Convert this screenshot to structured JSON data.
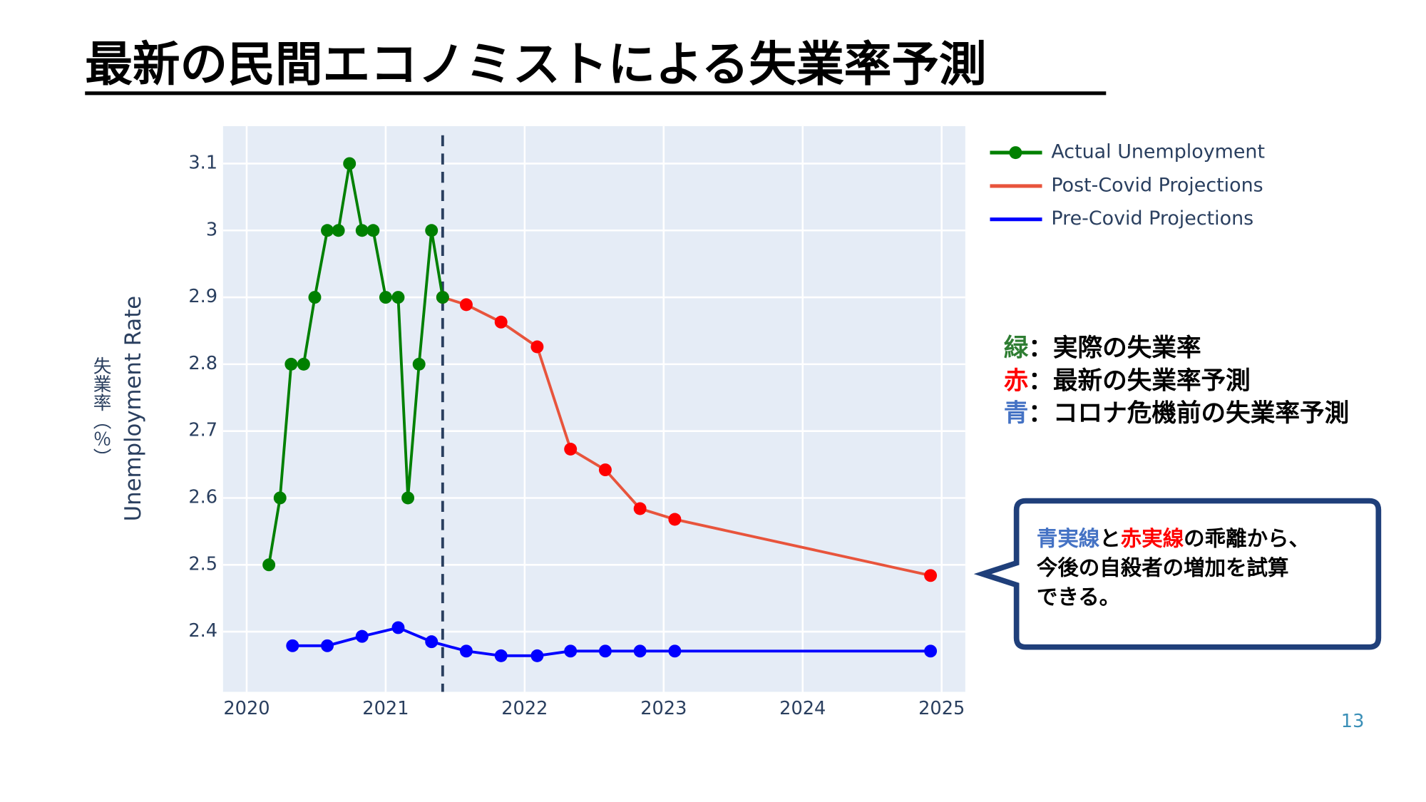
{
  "chart_data": {
    "type": "line",
    "title": "最新の民間エコノミストによる失業率予測",
    "ylabel": "Unemployment Rate",
    "ylabel_ja": "失業率（％）",
    "xlim": [
      2019.83,
      2025.17
    ],
    "xticks": [
      2020,
      2021,
      2022,
      2023,
      2024,
      2025
    ],
    "ylim": [
      2.31,
      3.156
    ],
    "yticks": [
      2.4,
      2.5,
      2.6,
      2.7,
      2.8,
      2.9,
      3,
      3.1
    ],
    "grid": true,
    "vline": 2021.41,
    "vline_color": "#2a3f5f",
    "legend": "top-right",
    "series": [
      {
        "name": "Actual Unemployment",
        "color": "#008000",
        "marker_color": "#008000",
        "markers_in_legend": true,
        "x": [
          2020.16,
          2020.24,
          2020.32,
          2020.41,
          2020.49,
          2020.58,
          2020.66,
          2020.74,
          2020.83,
          2020.91,
          2021.0,
          2021.09,
          2021.16,
          2021.24,
          2021.33,
          2021.41
        ],
        "values": [
          2.5,
          2.6,
          2.8,
          2.8,
          2.9,
          3.0,
          3.0,
          3.1,
          3.0,
          3.0,
          2.9,
          2.9,
          2.6,
          2.8,
          3.0,
          2.9
        ]
      },
      {
        "name": "Post-Covid Projections",
        "color": "#e8543c",
        "marker_color": "#ff0000",
        "markers_in_legend": false,
        "x": [
          2021.41,
          2021.58,
          2021.83,
          2022.09,
          2022.33,
          2022.58,
          2022.83,
          2023.08,
          2024.92
        ],
        "values": [
          2.9,
          2.889,
          2.863,
          2.826,
          2.673,
          2.642,
          2.584,
          2.568,
          2.484
        ]
      },
      {
        "name": "Pre-Covid Projections",
        "color": "#0000ff",
        "marker_color": "#0000ff",
        "markers_in_legend": false,
        "x": [
          2020.33,
          2020.58,
          2020.83,
          2021.09,
          2021.33,
          2021.58,
          2021.83,
          2022.09,
          2022.33,
          2022.58,
          2022.83,
          2023.08,
          2024.92
        ],
        "values": [
          2.379,
          2.379,
          2.393,
          2.406,
          2.385,
          2.371,
          2.364,
          2.364,
          2.371,
          2.371,
          2.371,
          2.371,
          2.371
        ]
      }
    ],
    "notes": [
      {
        "key": "緑",
        "color": "#2e7d32",
        "text": "：実際の失業率"
      },
      {
        "key": "赤",
        "color": "#ff0000",
        "text": "：最新の失業率予測"
      },
      {
        "key": "青",
        "color": "#4472c4",
        "text": "：コロナ危機前の失業率予測"
      }
    ],
    "callout": [
      [
        {
          "text": "青実線",
          "color": "#4472c4"
        },
        {
          "text": "と",
          "color": "#000000"
        },
        {
          "text": "赤実線",
          "color": "#ff0000"
        },
        {
          "text": "の乖離から、",
          "color": "#000000"
        }
      ],
      [
        {
          "text": "今後の自殺者の増加を試算",
          "color": "#000000"
        }
      ],
      [
        {
          "text": "できる。",
          "color": "#000000"
        }
      ]
    ],
    "page_number": "13"
  }
}
